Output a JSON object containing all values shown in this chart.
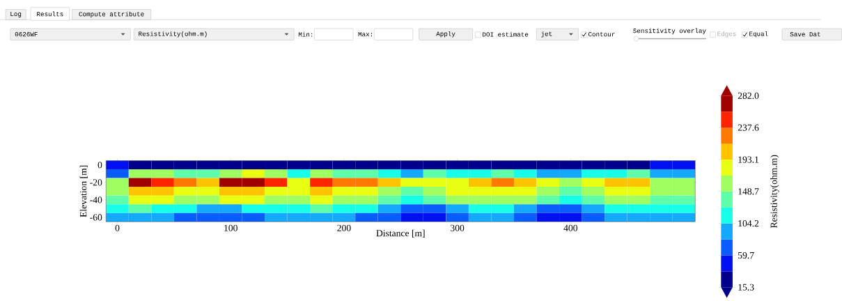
{
  "chart_data": {
    "type": "heatmap",
    "xlabel": "Distance [m]",
    "ylabel": "Elevation [m]",
    "clabel": "Resistivity(ohm.m)",
    "categories": [
      "0",
      null,
      null,
      null,
      null,
      "100",
      null,
      null,
      null,
      null,
      "200",
      null,
      null,
      null,
      null,
      "300",
      null,
      null,
      null,
      null,
      "400",
      null,
      null,
      null,
      null,
      null
    ],
    "y_categories": [
      "0",
      null,
      "-20",
      null,
      "-40",
      null,
      "-60"
    ],
    "cells": [
      [
        49,
        26,
        26,
        26,
        26,
        26,
        26,
        26,
        26,
        26,
        26,
        26,
        26,
        26,
        26,
        26,
        26,
        26,
        26,
        26,
        26,
        26,
        26,
        26,
        49,
        49
      ],
      [
        71,
        160,
        160,
        138,
        138,
        160,
        182,
        160,
        115,
        160,
        138,
        138,
        115,
        93,
        138,
        115,
        115,
        138,
        115,
        93,
        93,
        115,
        115,
        138,
        93,
        93
      ],
      [
        160,
        271,
        249,
        226,
        204,
        271,
        271,
        249,
        182,
        249,
        226,
        226,
        204,
        182,
        182,
        182,
        204,
        226,
        204,
        182,
        160,
        182,
        204,
        204,
        160,
        160
      ],
      [
        160,
        204,
        204,
        182,
        182,
        204,
        204,
        182,
        182,
        204,
        182,
        182,
        160,
        138,
        160,
        182,
        182,
        182,
        182,
        160,
        138,
        160,
        182,
        182,
        160,
        160
      ],
      [
        138,
        182,
        182,
        160,
        160,
        182,
        182,
        160,
        160,
        182,
        160,
        160,
        138,
        115,
        138,
        160,
        160,
        160,
        160,
        138,
        115,
        138,
        160,
        160,
        138,
        138
      ],
      [
        115,
        138,
        115,
        115,
        93,
        93,
        115,
        115,
        115,
        138,
        115,
        115,
        93,
        71,
        71,
        93,
        115,
        115,
        93,
        71,
        71,
        93,
        115,
        115,
        115,
        115
      ],
      [
        93,
        93,
        93,
        71,
        71,
        71,
        71,
        93,
        93,
        93,
        93,
        71,
        71,
        49,
        49,
        71,
        93,
        93,
        71,
        49,
        49,
        71,
        93,
        93,
        93,
        93
      ]
    ],
    "colors": [
      "#00008c",
      "#0010f0",
      "#0a5cff",
      "#14a8ff",
      "#18ffe8",
      "#5effa8",
      "#a0ff60",
      "#e8ff14",
      "#ffc400",
      "#ff7800",
      "#ff2400",
      "#a00000"
    ],
    "clim": [
      15.3,
      282.0
    ],
    "cticks": [
      15.3,
      59.7,
      104.2,
      148.7,
      193.1,
      237.6,
      {
        "value": 282.0,
        "label": "282.0"
      }
    ],
    "annotations": [
      "Log",
      "Results",
      "Compute attribute",
      "0626WF",
      "Resistivity(ohm.m)",
      "Min:",
      "Max:",
      "Apply",
      "DOI estimate",
      "jet",
      "Contour",
      "Sensitivity overlay",
      "Edges",
      "Equal",
      "Save Dat"
    ]
  }
}
